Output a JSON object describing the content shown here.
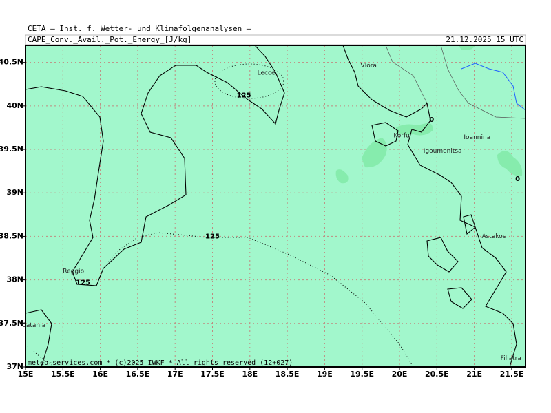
{
  "header": {
    "institute": "CETA — Inst. f. Wetter- und Klimafolgenanalysen —",
    "parameter": "CAPE_Conv._Avail._Pot._Energy_[J/kg]",
    "valid_time": "21.12.2025 15 UTC"
  },
  "map": {
    "lon_range": [
      15,
      21.685
    ],
    "lat_range": [
      37,
      40.695
    ],
    "lon_ticks": [
      {
        "value": 15,
        "label": "15E"
      },
      {
        "value": 15.5,
        "label": "15.5E"
      },
      {
        "value": 16,
        "label": "16E"
      },
      {
        "value": 16.5,
        "label": "16.5E"
      },
      {
        "value": 17,
        "label": "17E"
      },
      {
        "value": 17.5,
        "label": "17.5E"
      },
      {
        "value": 18,
        "label": "18E"
      },
      {
        "value": 18.5,
        "label": "18.5E"
      },
      {
        "value": 19,
        "label": "19E"
      },
      {
        "value": 19.5,
        "label": "19.5E"
      },
      {
        "value": 20,
        "label": "20E"
      },
      {
        "value": 20.5,
        "label": "20.5E"
      },
      {
        "value": 21,
        "label": "21E"
      },
      {
        "value": 21.5,
        "label": "21.5E"
      }
    ],
    "lat_ticks": [
      {
        "value": 37,
        "label": "37N"
      },
      {
        "value": 37.5,
        "label": "37.5N"
      },
      {
        "value": 38,
        "label": "38N"
      },
      {
        "value": 38.5,
        "label": "38.5N"
      },
      {
        "value": 39,
        "label": "39N"
      },
      {
        "value": 39.5,
        "label": "39.5N"
      },
      {
        "value": 40,
        "label": "40N"
      },
      {
        "value": 40.5,
        "label": "40.5N"
      }
    ],
    "grid": true,
    "places": [
      {
        "name": "Vlora",
        "lon": 19.48,
        "lat": 40.46
      },
      {
        "name": "Lecce",
        "lon": 18.1,
        "lat": 40.38
      },
      {
        "name": "Korfu",
        "lon": 19.92,
        "lat": 39.66
      },
      {
        "name": "Igoumenitsa",
        "lon": 20.32,
        "lat": 39.48
      },
      {
        "name": "Ioannina",
        "lon": 20.86,
        "lat": 39.64
      },
      {
        "name": "Astakos",
        "lon": 21.1,
        "lat": 38.5
      },
      {
        "name": "Reggio",
        "lon": 15.5,
        "lat": 38.1
      },
      {
        "name": "Catania",
        "lon": 14.95,
        "lat": 37.48
      },
      {
        "name": "Filiatra",
        "lon": 21.35,
        "lat": 37.1
      }
    ],
    "contour_labels": [
      {
        "value": 125,
        "lon": 17.92,
        "lat": 40.12
      },
      {
        "value": 125,
        "lon": 17.5,
        "lat": 38.5
      },
      {
        "value": 125,
        "lon": 15.77,
        "lat": 37.97
      },
      {
        "value": 0,
        "lon": 20.43,
        "lat": 39.84
      },
      {
        "value": 0,
        "lon": 21.58,
        "lat": 39.16
      }
    ]
  },
  "footer": "meteo-services.com * (c)2025 IWKF * All rights reserved (12+027)"
}
